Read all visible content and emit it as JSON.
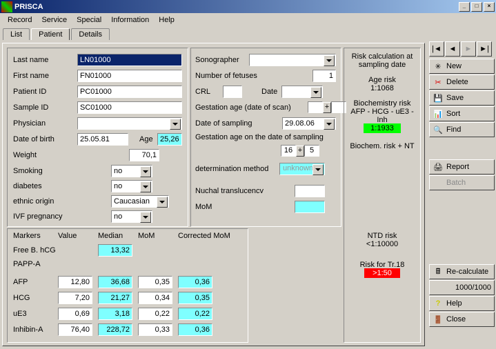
{
  "window": {
    "title": "PRISCA",
    "min": "0",
    "max": "1",
    "close": "r"
  },
  "menu": [
    "Record",
    "Service",
    "Special",
    "Information",
    "Help"
  ],
  "tabs": [
    "List",
    "Patient",
    "Details"
  ],
  "patient": {
    "last_name_lbl": "Last name",
    "last_name": "LN01000",
    "first_name_lbl": "First name",
    "first_name": "FN01000",
    "patient_id_lbl": "Patient ID",
    "patient_id": "PC01000",
    "sample_id_lbl": "Sample ID",
    "sample_id": "SC01000",
    "physician_lbl": "Physician",
    "physician": "",
    "dob_lbl": "Date of birth",
    "dob": "25.05.81",
    "age_lbl": "Age",
    "age": "25,26",
    "weight_lbl": "Weight",
    "weight": "70,1",
    "smoking_lbl": "Smoking",
    "smoking": "no",
    "diabetes_lbl": "diabetes",
    "diabetes": "no",
    "ethnic_lbl": "ethnic origin",
    "ethnic": "Caucasian",
    "ivf_lbl": "IVF pregnancy",
    "ivf": "no"
  },
  "scan": {
    "sono_lbl": "Sonographer",
    "nfetus_lbl": "Number of fetuses",
    "nfetus": "1",
    "crl_lbl": "CRL",
    "date_lbl": "Date",
    "ga_scan_lbl": "Gestation age (date of scan)",
    "dos_lbl": "Date of sampling",
    "dos": "29.08.06",
    "ga_samp_lbl": "Gestation age on the date of sampling",
    "ga_w": "16",
    "ga_d": "5",
    "det_lbl": "determination method",
    "det": "unknown",
    "nt_lbl": "Nuchal translucencv",
    "mom_lbl": "MoM"
  },
  "markers": {
    "hdr": [
      "Markers",
      "Value",
      "Median",
      "MoM",
      "Corrected MoM"
    ],
    "rows": [
      {
        "n": "Free B. hCG",
        "v": "",
        "med": "13,32",
        "mom": "",
        "cmom": ""
      },
      {
        "n": "PAPP-A",
        "v": "",
        "med": "",
        "mom": "",
        "cmom": ""
      },
      {
        "n": "AFP",
        "v": "12,80",
        "med": "36,68",
        "mom": "0,35",
        "cmom": "0,36"
      },
      {
        "n": "HCG",
        "v": "7,20",
        "med": "21,27",
        "mom": "0,34",
        "cmom": "0,35"
      },
      {
        "n": "uE3",
        "v": "0,69",
        "med": "3,18",
        "mom": "0,22",
        "cmom": "0,22"
      },
      {
        "n": "Inhibin-A",
        "v": "76,40",
        "med": "228,72",
        "mom": "0,33",
        "cmom": "0,36"
      }
    ]
  },
  "risk": {
    "title": "Risk calculation at sampling date",
    "age_lbl": "Age risk",
    "age": "1:1068",
    "bio_lbl": "Biochemistry risk",
    "bio_sub": "AFP - HCG - uE3 - Inh",
    "bio": "1:1933",
    "bnt_lbl": "Biochem. risk + NT",
    "ntd_lbl": "NTD risk",
    "ntd": "<1:10000",
    "t18_lbl": "Risk for Tr.18",
    "t18": ">1:50"
  },
  "side": {
    "nav": [
      "9",
      "3",
      "4",
      ":"
    ],
    "new": "New",
    "delete": "Delete",
    "save": "Save",
    "sort": "Sort",
    "find": "Find",
    "report": "Report",
    "batch": "Batch",
    "recalc": "Re-calculate",
    "counter": "1000/1000",
    "help": "Help",
    "close": "Close"
  }
}
